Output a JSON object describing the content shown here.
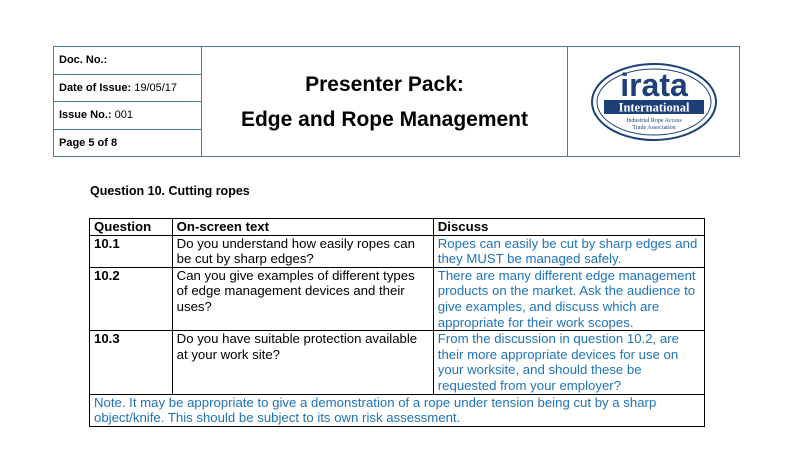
{
  "header": {
    "doc_no_label": "Doc. No.:",
    "doc_no_value": "",
    "date_label": "Date of Issue:",
    "date_value": "19/05/17",
    "issue_label": "Issue No.:",
    "issue_value": "001",
    "page_label": "Page 5 of 8",
    "title_line1": "Presenter Pack:",
    "title_line2": "Edge and Rope Management",
    "logo_main": "irata",
    "logo_sub": "International",
    "logo_line1": "Industrial Rope Access",
    "logo_line2": "Trade Association"
  },
  "section_title": "Question 10. Cutting ropes",
  "table": {
    "headers": [
      "Question",
      "On-screen text",
      "Discuss"
    ],
    "rows": [
      {
        "question": "10.1",
        "on_screen": "Do you understand how easily ropes can be cut by sharp edges?",
        "discuss": "Ropes can easily be cut by sharp edges and they MUST be managed safely."
      },
      {
        "question": "10.2",
        "on_screen": "Can you give examples of different types of edge management devices and their uses?",
        "discuss": "There are many different edge management products on the market. Ask the audience to give examples, and discuss which are appropriate for their work scopes."
      },
      {
        "question": "10.3",
        "on_screen": "Do you have suitable protection available at your work site?",
        "discuss": "From the discussion in question 10.2, are their more appropriate devices for use on your worksite, and should these be requested from your employer?"
      }
    ],
    "note": "Note. It may be appropriate to give a demonstration of a rope under tension being cut by a sharp object/knife. This should be subject to its own risk assessment."
  },
  "colors": {
    "border_blue": "#4a78a8",
    "text_blue": "#1f73b7",
    "logo_navy": "#1d3f7a"
  }
}
